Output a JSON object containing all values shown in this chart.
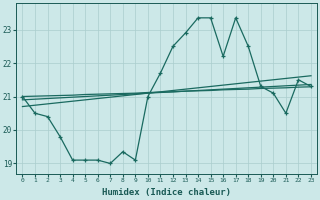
{
  "xlabel": "Humidex (Indice chaleur)",
  "background_color": "#cce8e8",
  "line_color": "#1a6a60",
  "x_data": [
    0,
    1,
    2,
    3,
    4,
    5,
    6,
    7,
    8,
    9,
    10,
    11,
    12,
    13,
    14,
    15,
    16,
    17,
    18,
    19,
    20,
    21,
    22,
    23
  ],
  "y_main": [
    21.0,
    20.5,
    20.4,
    19.8,
    19.1,
    19.1,
    19.1,
    19.0,
    19.35,
    19.1,
    21.0,
    21.7,
    22.5,
    22.9,
    23.35,
    23.35,
    22.2,
    23.35,
    22.5,
    21.3,
    21.1,
    20.5,
    21.5,
    21.3
  ],
  "trend1": [
    21.0,
    21.01,
    21.02,
    21.03,
    21.04,
    21.06,
    21.07,
    21.08,
    21.09,
    21.1,
    21.12,
    21.13,
    21.14,
    21.16,
    21.17,
    21.18,
    21.2,
    21.21,
    21.22,
    21.24,
    21.25,
    21.26,
    21.28,
    21.29
  ],
  "trend2": [
    20.9,
    20.92,
    20.94,
    20.96,
    20.98,
    21.0,
    21.02,
    21.04,
    21.06,
    21.08,
    21.1,
    21.12,
    21.14,
    21.16,
    21.18,
    21.2,
    21.22,
    21.24,
    21.26,
    21.28,
    21.3,
    21.32,
    21.34,
    21.36
  ],
  "trend3": [
    20.7,
    20.74,
    20.78,
    20.82,
    20.86,
    20.9,
    20.94,
    20.98,
    21.02,
    21.06,
    21.1,
    21.14,
    21.18,
    21.22,
    21.26,
    21.3,
    21.34,
    21.38,
    21.42,
    21.46,
    21.5,
    21.54,
    21.58,
    21.62
  ],
  "xlim": [
    -0.5,
    23.5
  ],
  "ylim": [
    18.7,
    23.8
  ],
  "yticks": [
    19,
    20,
    21,
    22,
    23
  ],
  "xticks": [
    0,
    1,
    2,
    3,
    4,
    5,
    6,
    7,
    8,
    9,
    10,
    11,
    12,
    13,
    14,
    15,
    16,
    17,
    18,
    19,
    20,
    21,
    22,
    23
  ],
  "grid_color": "#aacece",
  "font_color": "#1a5a55"
}
